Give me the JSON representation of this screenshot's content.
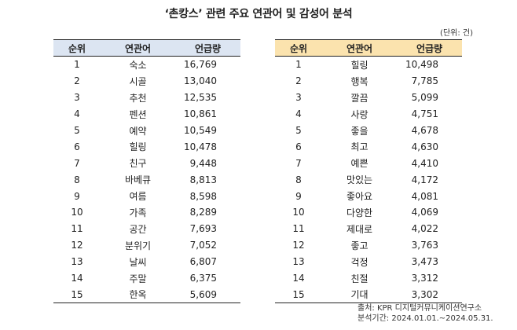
{
  "title": "‘촌캉스’ 관련 주요 연관어 및 감성어 분석",
  "unit": "(단위: 건)",
  "left_table": {
    "headers": [
      "순위",
      "연관어",
      "언급량"
    ],
    "rows": [
      [
        "1",
        "숙소",
        "16,769"
      ],
      [
        "2",
        "시골",
        "13,040"
      ],
      [
        "3",
        "추천",
        "12,535"
      ],
      [
        "4",
        "펜션",
        "10,861"
      ],
      [
        "5",
        "예약",
        "10,549"
      ],
      [
        "6",
        "힐링",
        "10,478"
      ],
      [
        "7",
        "친구",
        "9,448"
      ],
      [
        "8",
        "바베큐",
        "8,813"
      ],
      [
        "9",
        "여름",
        "8,598"
      ],
      [
        "10",
        "가족",
        "8,289"
      ],
      [
        "11",
        "공간",
        "7,693"
      ],
      [
        "12",
        "분위기",
        "7,052"
      ],
      [
        "13",
        "날씨",
        "6,807"
      ],
      [
        "14",
        "주말",
        "6,375"
      ],
      [
        "15",
        "한옥",
        "5,609"
      ]
    ]
  },
  "right_table": {
    "headers": [
      "순위",
      "연관어",
      "언급량"
    ],
    "rows": [
      [
        "1",
        "힐링",
        "10,498"
      ],
      [
        "2",
        "행복",
        "7,785"
      ],
      [
        "3",
        "깔끔",
        "5,099"
      ],
      [
        "4",
        "사랑",
        "4,751"
      ],
      [
        "5",
        "좋을",
        "4,678"
      ],
      [
        "6",
        "최고",
        "4,630"
      ],
      [
        "7",
        "예쁜",
        "4,410"
      ],
      [
        "8",
        "맛있는",
        "4,172"
      ],
      [
        "9",
        "좋아요",
        "4,081"
      ],
      [
        "10",
        "다양한",
        "4,069"
      ],
      [
        "11",
        "제대로",
        "4,022"
      ],
      [
        "12",
        "좋고",
        "3,763"
      ],
      [
        "13",
        "걱정",
        "3,473"
      ],
      [
        "14",
        "친절",
        "3,312"
      ],
      [
        "15",
        "기대",
        "3,302"
      ]
    ]
  },
  "source": {
    "line1": "출처: KPR 디지털커뮤니케이션연구소",
    "line2": "분석기간: 2024.01.01.~2024.05.31."
  }
}
